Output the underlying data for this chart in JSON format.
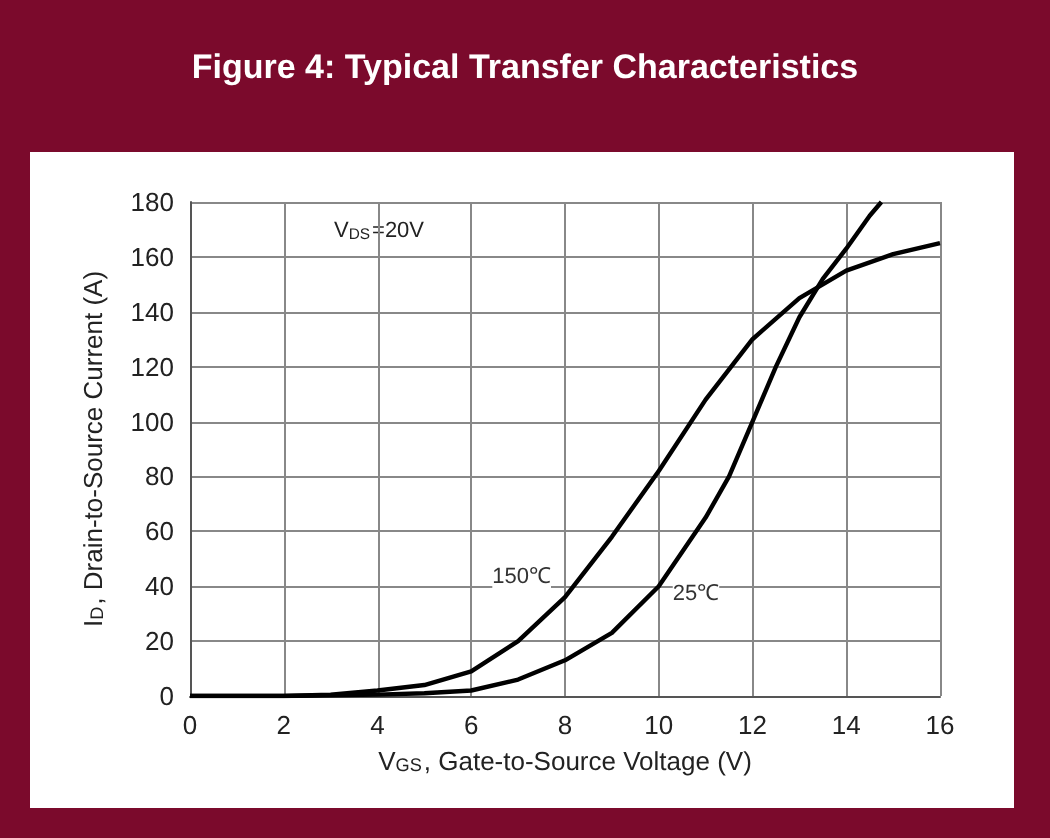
{
  "chart_data": {
    "type": "line",
    "title": "Figure 4: Typical Transfer Characteristics",
    "xlabel": "V$_{GS}$, Gate-to-Source Voltage (V)",
    "ylabel": "I$_{D}$, Drain-to-Source Current (A)",
    "annotations": [
      "V$_{DS}$=20V"
    ],
    "series": [
      {
        "name": "150℃",
        "color": "#000000",
        "x": [
          0,
          2,
          3,
          4,
          5,
          6,
          7,
          8,
          9,
          10,
          11,
          12,
          13,
          14,
          15,
          16
        ],
        "values": [
          0,
          0,
          0.5,
          2,
          4,
          9,
          20,
          36,
          58,
          82,
          108,
          130,
          145,
          155,
          161,
          165
        ]
      },
      {
        "name": "25℃",
        "color": "#000000",
        "x": [
          0,
          2,
          4,
          5,
          6,
          7,
          8,
          9,
          10,
          11,
          11.5,
          12,
          12.5,
          13,
          13.5,
          14,
          14.5,
          14.75
        ],
        "values": [
          0,
          0,
          0.5,
          1,
          2,
          6,
          13,
          23,
          40,
          65,
          80,
          100,
          120,
          138,
          152,
          163,
          175,
          180
        ]
      }
    ],
    "xlim": [
      0,
      16
    ],
    "xticks": [
      0,
      2,
      4,
      6,
      8,
      10,
      12,
      14,
      16
    ],
    "ylim": [
      0,
      180
    ],
    "yticks": [
      0,
      20,
      40,
      60,
      80,
      100,
      120,
      140,
      160,
      180
    ],
    "grid": true,
    "legend": false,
    "marker": "none",
    "line_style": "solid"
  }
}
